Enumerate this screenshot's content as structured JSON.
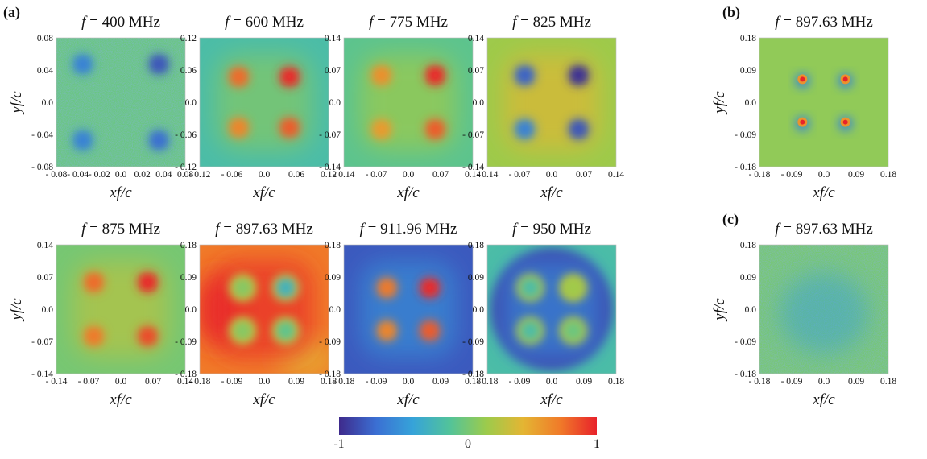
{
  "figure": {
    "panel_labels": [
      "(a)",
      "(b)",
      "(c)"
    ],
    "x_axis_label": "xf/c",
    "y_axis_label": "yf/c",
    "colorbar": {
      "ticks": [
        "-1",
        "0",
        "1"
      ],
      "range": [
        -1,
        1
      ]
    }
  },
  "chart_data": [
    {
      "type": "heatmap",
      "panel": "a",
      "title": "f = 400 MHz",
      "freq": "400 MHz",
      "xticks": [
        "- 0.08",
        "- 0.04",
        "- 0.02",
        "0.0",
        "0.02",
        "0.04",
        "0.08"
      ],
      "yticks": [
        "0.08",
        "0.04",
        "0.0",
        "- 0.04",
        "- 0.08"
      ],
      "xlim": [
        -0.08,
        0.08
      ],
      "ylim": [
        -0.08,
        0.08
      ],
      "background": -0.05,
      "spots": [
        -0.6,
        -0.8,
        -0.6,
        -0.7
      ],
      "pattern": "noise"
    },
    {
      "type": "heatmap",
      "panel": "a",
      "title": "f = 600 MHz",
      "freq": "600 MHz",
      "xticks": [
        "- 0.12",
        "- 0.06",
        "0.0",
        "0.06",
        "0.12"
      ],
      "yticks": [
        "0.12",
        "0.06",
        "0.0",
        "- 0.06",
        "- 0.12"
      ],
      "xlim": [
        -0.12,
        0.12
      ],
      "ylim": [
        -0.12,
        0.12
      ],
      "background": -0.2,
      "spots": [
        0.75,
        0.95,
        0.65,
        0.8
      ],
      "pattern": "smooth"
    },
    {
      "type": "heatmap",
      "panel": "a",
      "title": "f = 775 MHz",
      "freq": "775 MHz",
      "xticks": [
        "- 0.14",
        "- 0.07",
        "0.0",
        "0.07",
        "0.14"
      ],
      "yticks": [
        "0.14",
        "0.07",
        "0.0",
        "- 0.07",
        "- 0.14"
      ],
      "xlim": [
        -0.14,
        0.14
      ],
      "ylim": [
        -0.14,
        0.14
      ],
      "background": -0.1,
      "spots": [
        0.6,
        0.95,
        0.55,
        0.8
      ],
      "pattern": "smooth"
    },
    {
      "type": "heatmap",
      "panel": "a",
      "title": "f = 825 MHz",
      "freq": "825 MHz",
      "xticks": [
        "- 0.14",
        "- 0.07",
        "0.0",
        "0.07",
        "0.14"
      ],
      "yticks": [
        "0.14",
        "0.07",
        "0.0",
        "- 0.07",
        "- 0.14"
      ],
      "xlim": [
        -0.14,
        0.14
      ],
      "ylim": [
        -0.14,
        0.14
      ],
      "background": 0.15,
      "spots": [
        -0.75,
        -0.95,
        -0.6,
        -0.8
      ],
      "pattern": "smooth"
    },
    {
      "type": "heatmap",
      "panel": "a",
      "title": "f = 875 MHz",
      "freq": "875 MHz",
      "xticks": [
        "- 0.14",
        "- 0.07",
        "0.0",
        "0.07",
        "0.14"
      ],
      "yticks": [
        "0.14",
        "0.07",
        "0.0",
        "- 0.07",
        "- 0.14"
      ],
      "xlim": [
        -0.14,
        0.14
      ],
      "ylim": [
        -0.14,
        0.14
      ],
      "background": 0.0,
      "spots": [
        0.75,
        0.95,
        0.7,
        0.85
      ],
      "pattern": "smooth"
    },
    {
      "type": "heatmap",
      "panel": "a",
      "title": "f = 897.63 MHz",
      "freq": "897.63 MHz",
      "xticks": [
        "- 0.18",
        "- 0.09",
        "0.0",
        "0.09",
        "0.18"
      ],
      "yticks": [
        "0.18",
        "0.09",
        "0.0",
        "- 0.09",
        "- 0.18"
      ],
      "xlim": [
        -0.18,
        0.18
      ],
      "ylim": [
        -0.18,
        0.18
      ],
      "background": 0.72,
      "spots": [
        0.05,
        -0.3,
        0.05,
        -0.1
      ],
      "pattern": "warm"
    },
    {
      "type": "heatmap",
      "panel": "a",
      "title": "f = 911.96 MHz",
      "freq": "911.96 MHz",
      "xticks": [
        "- 0.18",
        "- 0.09",
        "0.0",
        "0.09",
        "0.18"
      ],
      "yticks": [
        "0.18",
        "0.09",
        "0.0",
        "- 0.09",
        "- 0.18"
      ],
      "xlim": [
        -0.18,
        0.18
      ],
      "ylim": [
        -0.18,
        0.18
      ],
      "background": -0.8,
      "spots": [
        0.7,
        0.95,
        0.65,
        0.8
      ],
      "pattern": "smooth"
    },
    {
      "type": "heatmap",
      "panel": "a",
      "title": "f = 950 MHz",
      "freq": "950 MHz",
      "xticks": [
        "- 0.18",
        "- 0.09",
        "0.0",
        "0.09",
        "0.18"
      ],
      "yticks": [
        "0.18",
        "0.09",
        "0.0",
        "- 0.09",
        "- 0.18"
      ],
      "xlim": [
        -0.18,
        0.18
      ],
      "ylim": [
        -0.18,
        0.18
      ],
      "background": -0.85,
      "spots": [
        -0.2,
        0.15,
        -0.2,
        -0.05
      ],
      "pattern": "ring"
    },
    {
      "type": "heatmap",
      "panel": "b",
      "title": "f = 897.63 MHz",
      "freq": "897.63 MHz",
      "xticks": [
        "- 0.18",
        "- 0.09",
        "0.0",
        "0.09",
        "0.18"
      ],
      "yticks": [
        "0.18",
        "0.09",
        "0.0",
        "- 0.09",
        "- 0.18"
      ],
      "xlim": [
        -0.18,
        0.18
      ],
      "ylim": [
        -0.18,
        0.18
      ],
      "background": 0.1,
      "spots": [
        1.0,
        1.0,
        1.0,
        1.0
      ],
      "pattern": "dipole"
    },
    {
      "type": "heatmap",
      "panel": "c",
      "title": "f = 897.63 MHz",
      "freq": "897.63 MHz",
      "xticks": [
        "- 0.18",
        "- 0.09",
        "0.0",
        "0.09",
        "0.18"
      ],
      "yticks": [
        "0.18",
        "0.09",
        "0.0",
        "- 0.09",
        "- 0.18"
      ],
      "xlim": [
        -0.18,
        0.18
      ],
      "ylim": [
        -0.18,
        0.18
      ],
      "background": 0.0,
      "spots": [
        0,
        0,
        0,
        0
      ],
      "pattern": "noise-only"
    }
  ]
}
